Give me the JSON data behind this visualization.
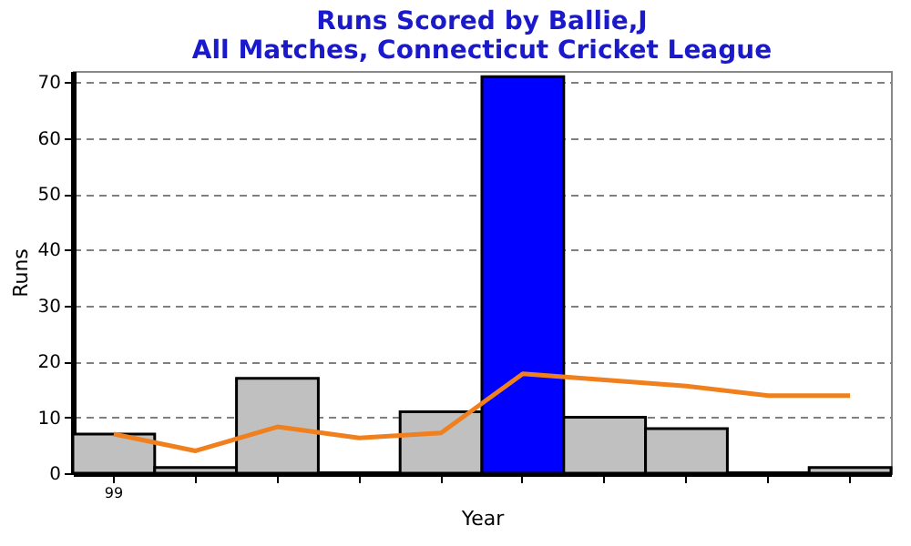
{
  "chart_data": {
    "type": "bar",
    "title": "Runs Scored by Ballie,J",
    "subtitle": "All Matches, Connecticut Cricket League",
    "xlabel": "Year",
    "ylabel": "Runs",
    "categories": [
      "99",
      null,
      null,
      null,
      null,
      null,
      null,
      null,
      null,
      null
    ],
    "series": [
      {
        "values": [
          7,
          1,
          17,
          0,
          11,
          71,
          10,
          8,
          0,
          1
        ],
        "colors": [
          "#c0c0c0",
          "#c0c0c0",
          "#c0c0c0",
          "#000000",
          "#c0c0c0",
          "#0000ff",
          "#c0c0c0",
          "#c0c0c0",
          "#000000",
          "#c0c0c0"
        ]
      },
      {
        "type": "line",
        "color": "#f0801e",
        "values": [
          7,
          4,
          8.3,
          6.3,
          7.2,
          17.8,
          16.7,
          15.6,
          13.9,
          13.9
        ]
      }
    ],
    "ylim": [
      0,
      72
    ],
    "yticks": [
      0,
      10,
      20,
      30,
      40,
      50,
      60,
      70
    ],
    "grid": "y"
  }
}
